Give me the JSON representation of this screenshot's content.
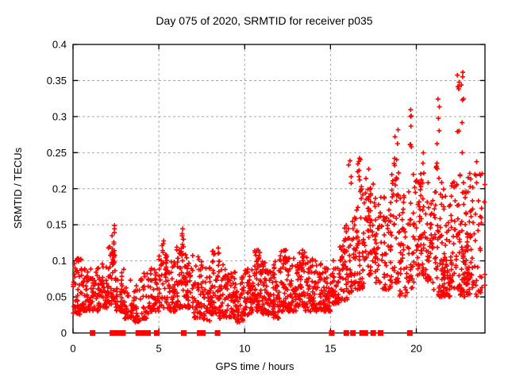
{
  "page": {
    "background": "#ffffff"
  },
  "chart_data": {
    "type": "scatter",
    "title": "Day 075 of 2020, SRMTID for receiver p035",
    "xlabel": "GPS time / hours",
    "ylabel": "SRMTID / TECUs",
    "xlim": [
      0,
      24
    ],
    "ylim": [
      0,
      0.4
    ],
    "grid": true,
    "xticks": {
      "values": [
        0,
        5,
        10,
        15,
        20
      ],
      "labels": [
        "0",
        "5",
        "10",
        "15",
        "20"
      ]
    },
    "yticks": {
      "values": [
        0,
        0.05,
        0.1,
        0.15,
        0.2,
        0.25,
        0.3,
        0.35,
        0.4
      ],
      "labels": [
        "0",
        "0.05",
        "0.1",
        "0.15",
        "0.2",
        "0.25",
        "0.3",
        "0.35",
        "0.4"
      ]
    },
    "marker": "plus",
    "marker_color": "#ff0000",
    "grid_color": "#a8a8a8",
    "border_color": "#000000",
    "seed": 1234,
    "series": [
      {
        "name": "srmtid-values",
        "marker": "plus",
        "color": "#ff0000",
        "clusters": [
          [
            0.0,
            0.5,
            0.025,
            0.105,
            50,
            "b"
          ],
          [
            0.5,
            1.0,
            0.03,
            0.095,
            45,
            "b"
          ],
          [
            1.0,
            1.5,
            0.03,
            0.09,
            40,
            "b"
          ],
          [
            1.5,
            2.0,
            0.035,
            0.1,
            45,
            "b"
          ],
          [
            2.0,
            2.5,
            0.04,
            0.12,
            45,
            "b"
          ],
          [
            2.5,
            3.0,
            0.03,
            0.09,
            40,
            "b"
          ],
          [
            3.0,
            3.5,
            0.02,
            0.075,
            30,
            "b"
          ],
          [
            3.5,
            4.0,
            0.015,
            0.08,
            35,
            "b"
          ],
          [
            4.0,
            4.5,
            0.02,
            0.085,
            35,
            "b"
          ],
          [
            4.5,
            5.0,
            0.03,
            0.09,
            40,
            "b"
          ],
          [
            5.0,
            5.5,
            0.035,
            0.115,
            45,
            "b"
          ],
          [
            5.5,
            6.0,
            0.03,
            0.1,
            45,
            "b"
          ],
          [
            6.0,
            6.5,
            0.035,
            0.12,
            45,
            "b"
          ],
          [
            6.5,
            7.0,
            0.035,
            0.11,
            45,
            "b"
          ],
          [
            7.0,
            7.5,
            0.02,
            0.11,
            45,
            "b"
          ],
          [
            7.5,
            8.0,
            0.015,
            0.1,
            40,
            "b"
          ],
          [
            8.0,
            8.5,
            0.025,
            0.115,
            45,
            "b"
          ],
          [
            8.5,
            9.0,
            0.02,
            0.095,
            45,
            "b"
          ],
          [
            9.0,
            9.5,
            0.02,
            0.085,
            45,
            "b"
          ],
          [
            9.5,
            10.0,
            0.015,
            0.08,
            45,
            "b"
          ],
          [
            10.0,
            10.5,
            0.025,
            0.09,
            50,
            "b"
          ],
          [
            10.5,
            11.0,
            0.03,
            0.115,
            50,
            "b"
          ],
          [
            11.0,
            11.5,
            0.025,
            0.1,
            50,
            "b"
          ],
          [
            11.5,
            12.0,
            0.02,
            0.1,
            50,
            "b"
          ],
          [
            12.0,
            12.5,
            0.03,
            0.115,
            50,
            "b"
          ],
          [
            12.5,
            13.0,
            0.03,
            0.105,
            50,
            "b"
          ],
          [
            13.0,
            13.5,
            0.035,
            0.115,
            50,
            "b"
          ],
          [
            13.5,
            14.0,
            0.03,
            0.105,
            45,
            "b"
          ],
          [
            14.0,
            14.5,
            0.03,
            0.1,
            45,
            "b"
          ],
          [
            14.5,
            15.0,
            0.03,
            0.095,
            45,
            "b"
          ],
          [
            15.0,
            15.5,
            0.04,
            0.11,
            40,
            "b"
          ],
          [
            15.5,
            16.0,
            0.045,
            0.14,
            40,
            "b"
          ],
          [
            16.0,
            16.5,
            0.05,
            0.17,
            45,
            "b"
          ],
          [
            16.5,
            17.0,
            0.06,
            0.2,
            45,
            "b"
          ],
          [
            17.0,
            17.5,
            0.08,
            0.21,
            40,
            "b"
          ],
          [
            17.5,
            18.0,
            0.07,
            0.2,
            40,
            "b"
          ],
          [
            18.0,
            18.5,
            0.06,
            0.19,
            40,
            "b"
          ],
          [
            18.5,
            19.0,
            0.07,
            0.22,
            40,
            "b"
          ],
          [
            19.0,
            19.5,
            0.05,
            0.2,
            40,
            "b"
          ],
          [
            19.5,
            20.0,
            0.06,
            0.22,
            35,
            "b"
          ],
          [
            20.0,
            20.5,
            0.08,
            0.22,
            40,
            "b"
          ],
          [
            20.5,
            21.0,
            0.07,
            0.21,
            45,
            "b"
          ],
          [
            21.0,
            21.5,
            0.05,
            0.22,
            45,
            "b"
          ],
          [
            21.5,
            22.0,
            0.05,
            0.2,
            45,
            "b"
          ],
          [
            22.0,
            22.5,
            0.06,
            0.22,
            40,
            "b"
          ],
          [
            22.5,
            23.0,
            0.05,
            0.22,
            45,
            "b"
          ],
          [
            23.0,
            23.5,
            0.05,
            0.22,
            35,
            "b"
          ],
          [
            23.5,
            24.0,
            0.05,
            0.24,
            28,
            "b"
          ],
          [
            2.25,
            2.42,
            0.1,
            0.158,
            12,
            "u"
          ],
          [
            5.15,
            5.3,
            0.095,
            0.13,
            6,
            "u"
          ],
          [
            6.3,
            6.45,
            0.1,
            0.15,
            9,
            "u"
          ],
          [
            8.4,
            8.55,
            0.095,
            0.125,
            5,
            "u"
          ],
          [
            10.75,
            10.9,
            0.09,
            0.115,
            5,
            "u"
          ],
          [
            12.25,
            12.4,
            0.09,
            0.115,
            5,
            "u"
          ],
          [
            13.35,
            13.5,
            0.09,
            0.115,
            5,
            "u"
          ],
          [
            15.8,
            16.0,
            0.1,
            0.15,
            6,
            "u"
          ],
          [
            16.05,
            16.2,
            0.2,
            0.26,
            4,
            "u"
          ],
          [
            16.55,
            16.8,
            0.17,
            0.245,
            12,
            "u"
          ],
          [
            17.05,
            17.35,
            0.15,
            0.235,
            12,
            "u"
          ],
          [
            18.7,
            19.0,
            0.2,
            0.287,
            10,
            "u"
          ],
          [
            19.6,
            19.78,
            0.24,
            0.315,
            7,
            "u"
          ],
          [
            20.1,
            20.45,
            0.17,
            0.25,
            12,
            "u"
          ],
          [
            21.15,
            21.35,
            0.22,
            0.345,
            10,
            "u"
          ],
          [
            21.5,
            22.1,
            0.06,
            0.1,
            22,
            "u"
          ],
          [
            22.35,
            22.5,
            0.27,
            0.378,
            7,
            "u"
          ],
          [
            22.62,
            22.78,
            0.14,
            0.38,
            11,
            "u"
          ],
          [
            22.6,
            23.0,
            0.06,
            0.12,
            18,
            "u"
          ],
          [
            23.0,
            23.2,
            0.12,
            0.25,
            8,
            "u"
          ]
        ]
      },
      {
        "name": "zero-flags",
        "marker": "filled-square",
        "color": "#ff0000",
        "y": 0,
        "x": [
          1.14,
          2.3,
          2.53,
          2.76,
          2.91,
          3.8,
          4.02,
          4.22,
          4.37,
          4.88,
          6.45,
          7.38,
          7.56,
          8.42,
          15.07,
          15.92,
          16.31,
          16.84,
          17.03,
          17.49,
          17.92,
          19.62
        ]
      }
    ]
  }
}
